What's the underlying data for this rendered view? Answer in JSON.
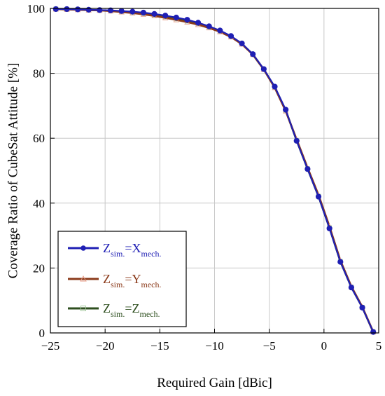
{
  "chart_data": {
    "type": "line",
    "title": "",
    "xlabel": "Required Gain [dBic]",
    "ylabel": "Coverage Ratio of CubeSat Attitude [%]",
    "xlim": [
      -25,
      5
    ],
    "ylim": [
      0,
      100
    ],
    "xticks": [
      -25,
      -20,
      -15,
      -10,
      -5,
      0,
      5
    ],
    "yticks": [
      0,
      20,
      40,
      60,
      80,
      100
    ],
    "xtick_labels": [
      "−25",
      "−20",
      "−15",
      "−10",
      "−5",
      "0",
      "5"
    ],
    "ytick_labels": [
      "0",
      "20",
      "40",
      "60",
      "80",
      "100"
    ],
    "grid": true,
    "legend_position": "lower-left",
    "series": [
      {
        "name": "Zsim.=Xmech.",
        "legend": {
          "z": "Z",
          "z_sub": "sim.",
          "eq": "=X",
          "eq_sub": "mech."
        },
        "color": "#1f1fb4",
        "marker": "circle",
        "points": [
          [
            -24.5,
            99.8
          ],
          [
            -23.5,
            99.8
          ],
          [
            -22.5,
            99.7
          ],
          [
            -21.5,
            99.6
          ],
          [
            -20.5,
            99.5
          ],
          [
            -19.5,
            99.4
          ],
          [
            -18.5,
            99.2
          ],
          [
            -17.5,
            99.0
          ],
          [
            -16.5,
            98.7
          ],
          [
            -15.5,
            98.3
          ],
          [
            -14.5,
            97.8
          ],
          [
            -13.5,
            97.2
          ],
          [
            -12.5,
            96.5
          ],
          [
            -11.5,
            95.6
          ],
          [
            -10.5,
            94.5
          ],
          [
            -9.5,
            93.2
          ],
          [
            -8.5,
            91.5
          ],
          [
            -7.5,
            89.2
          ],
          [
            -6.5,
            85.9
          ],
          [
            -5.5,
            81.3
          ],
          [
            -4.5,
            75.9
          ],
          [
            -3.5,
            68.8
          ],
          [
            -2.5,
            59.2
          ],
          [
            -1.5,
            50.5
          ],
          [
            -0.5,
            42.0
          ],
          [
            0.5,
            32.2
          ],
          [
            1.5,
            21.9
          ],
          [
            2.5,
            14.0
          ],
          [
            3.5,
            7.8
          ],
          [
            4.5,
            0.3
          ]
        ]
      },
      {
        "name": "Zsim.=Ymech.",
        "legend": {
          "z": "Z",
          "z_sub": "sim.",
          "eq": "=Y",
          "eq_sub": "mech."
        },
        "color": "#8b3a1a",
        "marker": "triangle",
        "points": [
          [
            -24.5,
            99.8
          ],
          [
            -23.5,
            99.7
          ],
          [
            -22.5,
            99.6
          ],
          [
            -21.5,
            99.5
          ],
          [
            -20.5,
            99.4
          ],
          [
            -19.5,
            99.2
          ],
          [
            -18.5,
            98.9
          ],
          [
            -17.5,
            98.6
          ],
          [
            -16.5,
            98.2
          ],
          [
            -15.5,
            97.7
          ],
          [
            -14.5,
            97.1
          ],
          [
            -13.5,
            96.5
          ],
          [
            -12.5,
            95.8
          ],
          [
            -11.5,
            95.0
          ],
          [
            -10.5,
            94.0
          ],
          [
            -9.5,
            92.8
          ],
          [
            -8.5,
            91.2
          ],
          [
            -7.5,
            89.0
          ],
          [
            -6.5,
            85.8
          ],
          [
            -5.5,
            81.2
          ],
          [
            -4.5,
            75.6
          ],
          [
            -3.5,
            68.4
          ],
          [
            -2.5,
            59.6
          ],
          [
            -1.5,
            50.9
          ],
          [
            -0.5,
            42.5
          ],
          [
            0.5,
            32.8
          ],
          [
            1.5,
            22.3
          ],
          [
            2.5,
            14.3
          ],
          [
            3.5,
            8.0
          ],
          [
            4.5,
            0.3
          ]
        ]
      },
      {
        "name": "Zsim.=Zmech.",
        "legend": {
          "z": "Z",
          "z_sub": "sim.",
          "eq": "=Z",
          "eq_sub": "mech."
        },
        "color": "#2e4f1f",
        "marker": "square",
        "points": [
          [
            -24.5,
            99.8
          ],
          [
            -23.5,
            99.7
          ],
          [
            -22.5,
            99.7
          ],
          [
            -21.5,
            99.5
          ],
          [
            -20.5,
            99.4
          ],
          [
            -19.5,
            99.3
          ],
          [
            -18.5,
            99.0
          ],
          [
            -17.5,
            98.7
          ],
          [
            -16.5,
            98.4
          ],
          [
            -15.5,
            97.9
          ],
          [
            -14.5,
            97.4
          ],
          [
            -13.5,
            96.8
          ],
          [
            -12.5,
            96.1
          ],
          [
            -11.5,
            95.3
          ],
          [
            -10.5,
            94.2
          ],
          [
            -9.5,
            93.0
          ],
          [
            -8.5,
            91.3
          ],
          [
            -7.5,
            89.1
          ],
          [
            -6.5,
            85.8
          ],
          [
            -5.5,
            81.2
          ],
          [
            -4.5,
            75.7
          ],
          [
            -3.5,
            68.6
          ],
          [
            -2.5,
            59.3
          ],
          [
            -1.5,
            50.6
          ],
          [
            -0.5,
            42.1
          ],
          [
            0.5,
            32.4
          ],
          [
            1.5,
            22.0
          ],
          [
            2.5,
            14.1
          ],
          [
            3.5,
            7.9
          ],
          [
            4.5,
            0.3
          ]
        ]
      }
    ]
  }
}
